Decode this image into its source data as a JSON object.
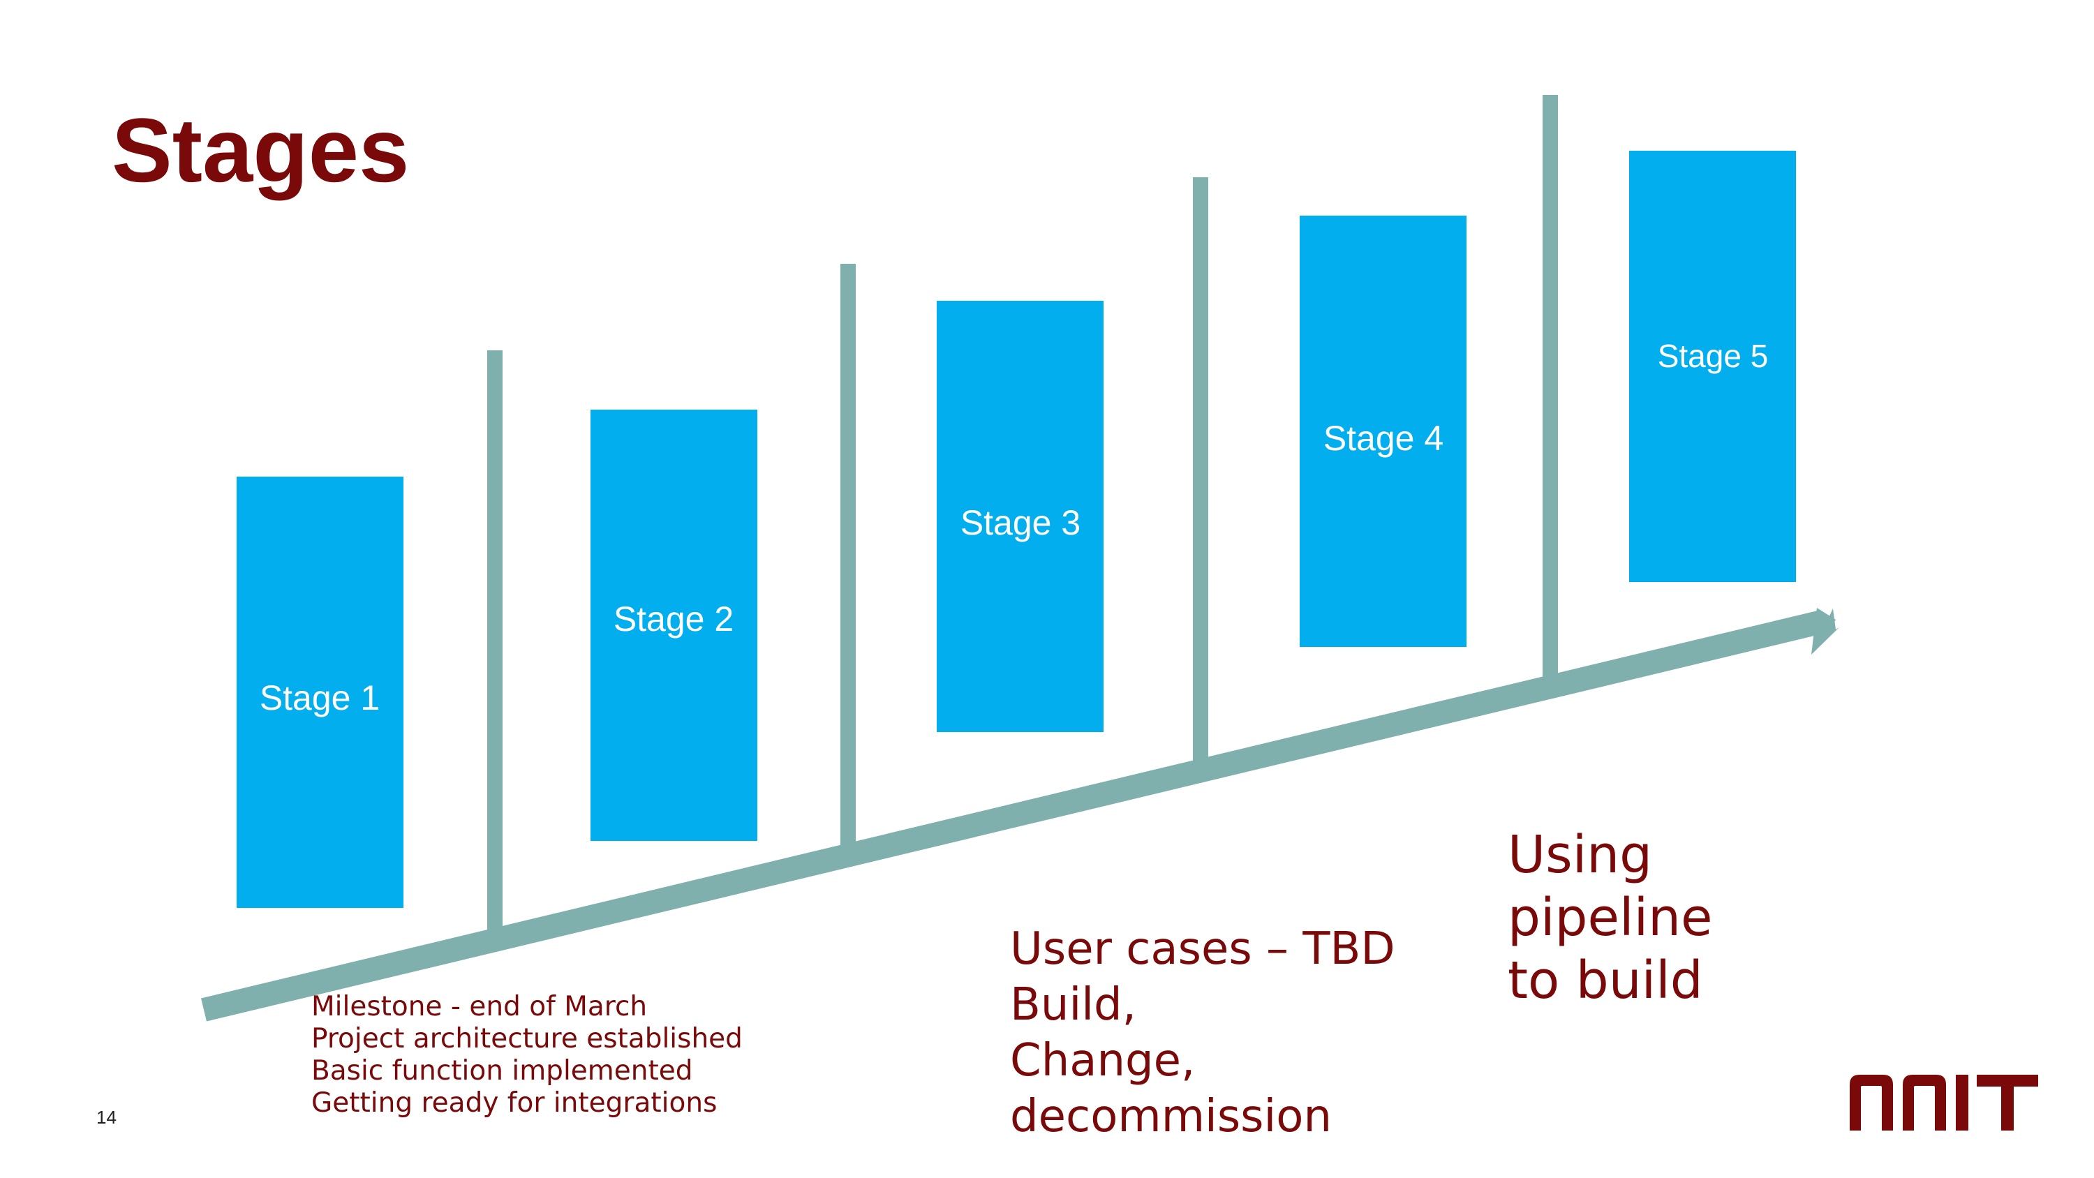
{
  "slide": {
    "title": "Stages",
    "page_number": "14"
  },
  "stages": [
    {
      "label": "Stage 1"
    },
    {
      "label": "Stage 2"
    },
    {
      "label": "Stage 3"
    },
    {
      "label": "Stage 4"
    },
    {
      "label": "Stage 5"
    }
  ],
  "notes": {
    "milestone": [
      "Milestone - end of March",
      "Project architecture established",
      "Basic function implemented",
      "Getting ready for integrations"
    ],
    "user_cases": [
      "User cases – TBD",
      "Build,",
      "Change,",
      "decommission"
    ],
    "pipeline": [
      "Using",
      "pipeline",
      "to build"
    ]
  },
  "logo": {
    "text": "NNIT",
    "color": "#7a0a0a"
  },
  "colors": {
    "title": "#7a0a0a",
    "stage_box": "#03aeef",
    "arrow": "#7fb0ad",
    "note_text": "#7a0a0a"
  }
}
